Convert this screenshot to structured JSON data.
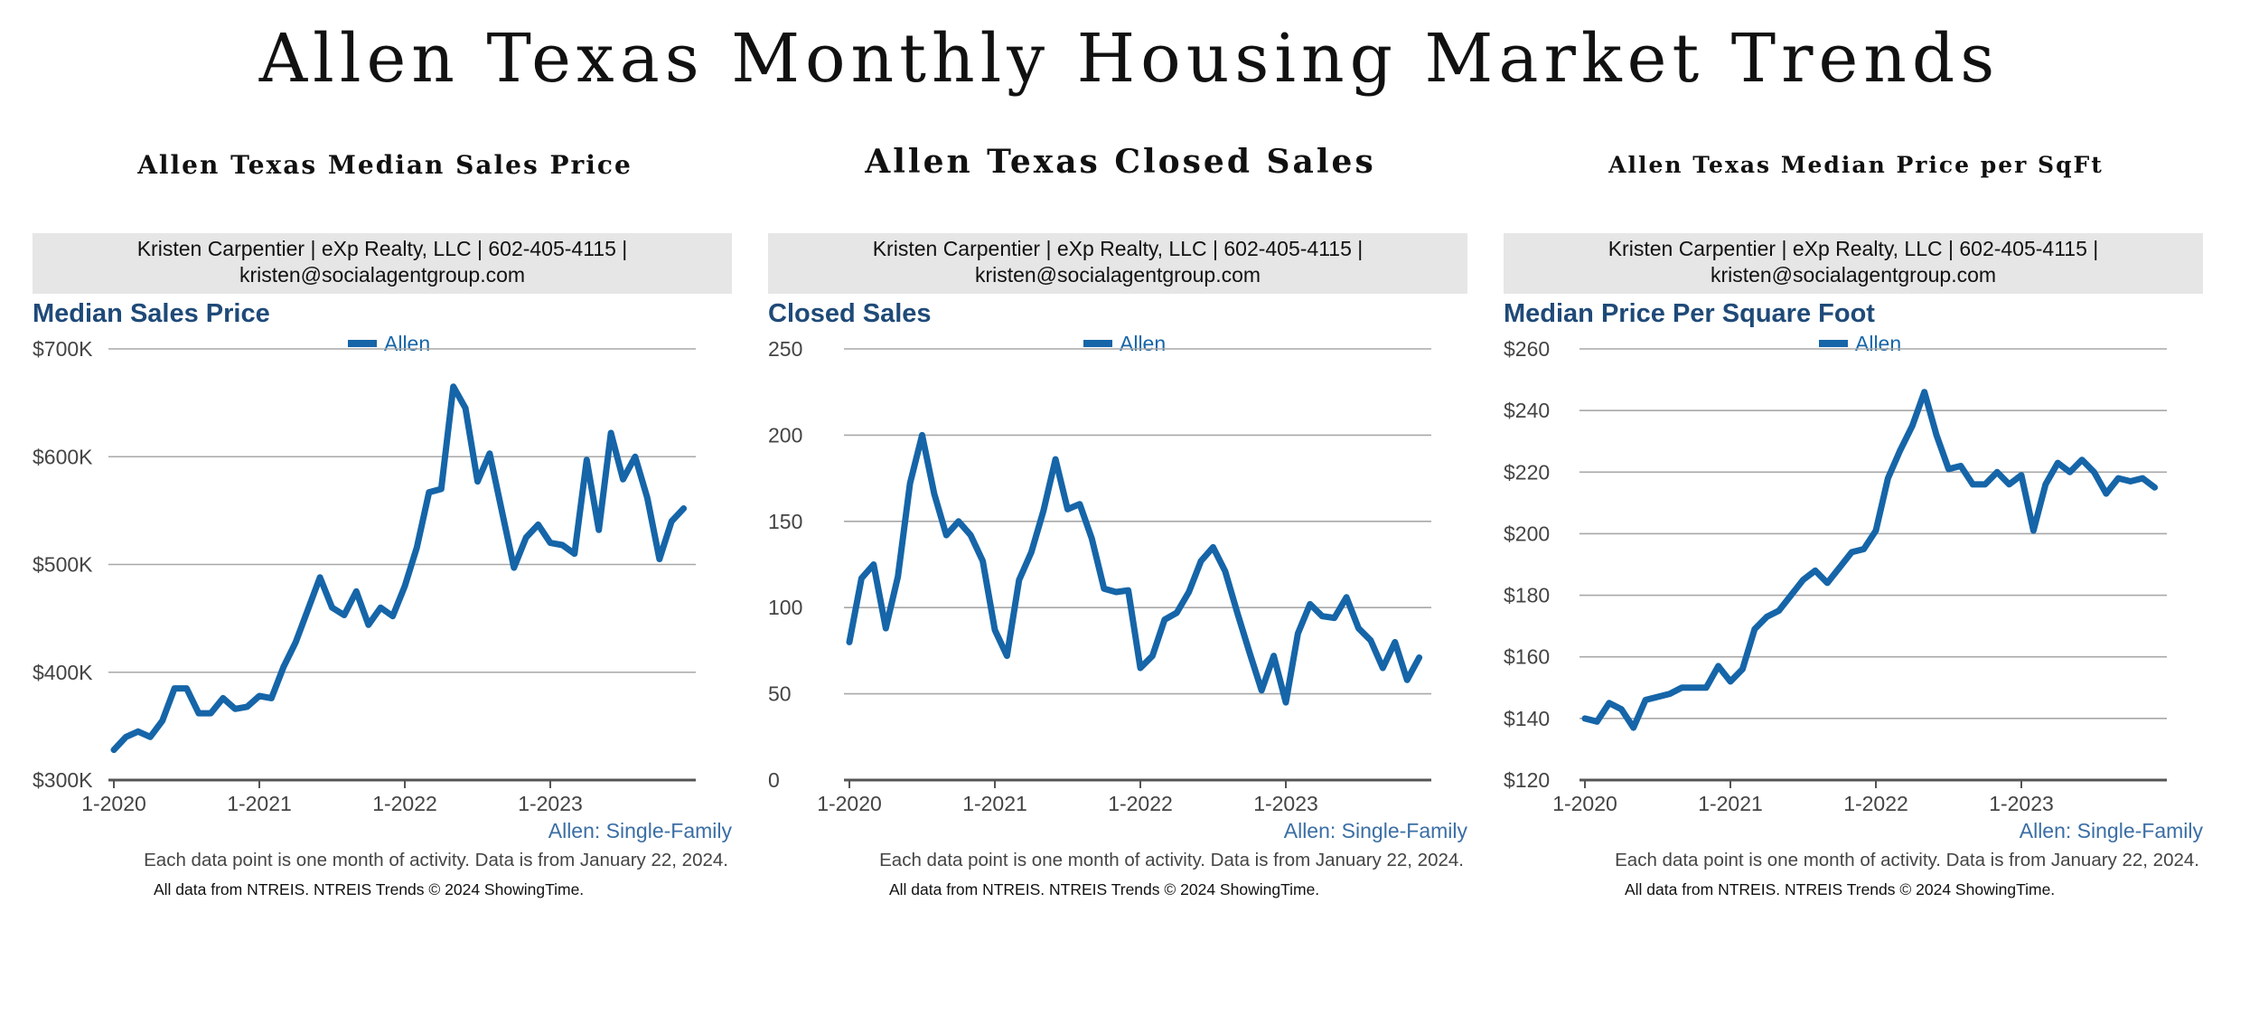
{
  "page": {
    "title": "Allen Texas Monthly Housing Market Trends"
  },
  "colors": {
    "line": "#1565a8",
    "heading": "#1f4a78",
    "grid": "#a8a8a8",
    "axis": "#555555",
    "banner": "#e6e6e6"
  },
  "chart_data": [
    {
      "type": "line",
      "panel_title": "Allen Texas Median Sales Price",
      "agent_line1": "Kristen Carpentier | eXp Realty, LLC | 602-405-4115 |",
      "agent_line2": "kristen@socialagentgroup.com",
      "title": "Median Sales Price",
      "legend": "Allen",
      "yticks": [
        {
          "value": 300,
          "label": "$300K"
        },
        {
          "value": 400,
          "label": "$400K"
        },
        {
          "value": 500,
          "label": "$500K"
        },
        {
          "value": 600,
          "label": "$600K"
        },
        {
          "value": 700,
          "label": "$700K"
        }
      ],
      "ylim": [
        300,
        700
      ],
      "xticks": [
        {
          "index": 0,
          "label": "1-2020"
        },
        {
          "index": 12,
          "label": "1-2021"
        },
        {
          "index": 24,
          "label": "1-2022"
        },
        {
          "index": 36,
          "label": "1-2023"
        }
      ],
      "n_months": 49,
      "series": [
        {
          "name": "Allen",
          "unit": "$K",
          "values": [
            328,
            340,
            345,
            340,
            355,
            385,
            385,
            362,
            362,
            376,
            366,
            368,
            378,
            376,
            405,
            428,
            458,
            488,
            460,
            453,
            475,
            444,
            460,
            452,
            480,
            516,
            567,
            570,
            665,
            645,
            577,
            603,
            550,
            497,
            525,
            537,
            520,
            518,
            510,
            597,
            532,
            622,
            579,
            600,
            562,
            505,
            540,
            552
          ]
        }
      ],
      "series_note": "Allen: Single-Family",
      "footnote1": "Each data point is one month of activity. Data is from January 22, 2024.",
      "footnote2": "All data from NTREIS. NTREIS Trends © 2024 ShowingTime."
    },
    {
      "type": "line",
      "panel_title": "Allen Texas Closed Sales",
      "agent_line1": "Kristen Carpentier | eXp Realty, LLC | 602-405-4115 |",
      "agent_line2": "kristen@socialagentgroup.com",
      "title": "Closed Sales",
      "legend": "Allen",
      "yticks": [
        {
          "value": 0,
          "label": "0"
        },
        {
          "value": 50,
          "label": "50"
        },
        {
          "value": 100,
          "label": "100"
        },
        {
          "value": 150,
          "label": "150"
        },
        {
          "value": 200,
          "label": "200"
        },
        {
          "value": 250,
          "label": "250"
        }
      ],
      "ylim": [
        0,
        250
      ],
      "xticks": [
        {
          "index": 0,
          "label": "1-2020"
        },
        {
          "index": 12,
          "label": "1-2021"
        },
        {
          "index": 24,
          "label": "1-2022"
        },
        {
          "index": 36,
          "label": "1-2023"
        }
      ],
      "n_months": 49,
      "series": [
        {
          "name": "Allen",
          "unit": "sales",
          "values": [
            80,
            117,
            125,
            88,
            118,
            172,
            200,
            166,
            142,
            150,
            142,
            127,
            87,
            72,
            116,
            132,
            156,
            186,
            157,
            160,
            140,
            111,
            109,
            110,
            65,
            72,
            93,
            97,
            109,
            127,
            135,
            121,
            97,
            74,
            52,
            72,
            45,
            85,
            102,
            95,
            94,
            106,
            88,
            81,
            65,
            80,
            58,
            71
          ]
        }
      ],
      "series_note": "Allen: Single-Family",
      "footnote1": "Each data point is one month of activity. Data is from January 22, 2024.",
      "footnote2": "All data from NTREIS. NTREIS Trends © 2024 ShowingTime."
    },
    {
      "type": "line",
      "panel_title": "Allen Texas Median Price per SqFt",
      "agent_line1": "Kristen Carpentier | eXp Realty, LLC | 602-405-4115 |",
      "agent_line2": "kristen@socialagentgroup.com",
      "title": "Median Price Per Square Foot",
      "legend": "Allen",
      "yticks": [
        {
          "value": 120,
          "label": "$120"
        },
        {
          "value": 140,
          "label": "$140"
        },
        {
          "value": 160,
          "label": "$160"
        },
        {
          "value": 180,
          "label": "$180"
        },
        {
          "value": 200,
          "label": "$200"
        },
        {
          "value": 220,
          "label": "$220"
        },
        {
          "value": 240,
          "label": "$240"
        },
        {
          "value": 260,
          "label": "$260"
        }
      ],
      "ylim": [
        120,
        260
      ],
      "xticks": [
        {
          "index": 0,
          "label": "1-2020"
        },
        {
          "index": 12,
          "label": "1-2021"
        },
        {
          "index": 24,
          "label": "1-2022"
        },
        {
          "index": 36,
          "label": "1-2023"
        }
      ],
      "n_months": 49,
      "series": [
        {
          "name": "Allen",
          "unit": "$/sqft",
          "values": [
            140,
            139,
            145,
            143,
            137,
            146,
            147,
            148,
            150,
            150,
            150,
            157,
            152,
            156,
            169,
            173,
            175,
            180,
            185,
            188,
            184,
            189,
            194,
            195,
            201,
            218,
            227,
            235,
            246,
            232,
            221,
            222,
            216,
            216,
            220,
            216,
            219,
            201,
            216,
            223,
            220,
            224,
            220,
            213,
            218,
            217,
            218,
            215
          ]
        }
      ],
      "series_note": "Allen: Single-Family",
      "footnote1": "Each data point is one month of activity. Data is from January 22, 2024.",
      "footnote2": "All data from NTREIS. NTREIS Trends © 2024 ShowingTime."
    }
  ]
}
